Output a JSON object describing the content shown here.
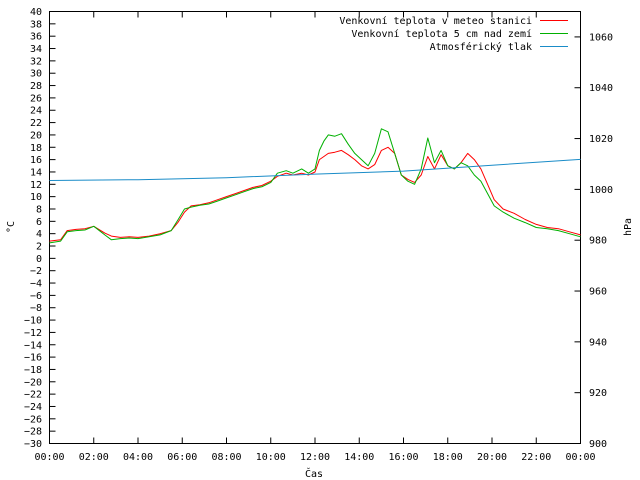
{
  "chart_data": {
    "type": "line",
    "title": "",
    "xlabel": "Čas",
    "ylabel": "°C",
    "y2label": "hPa",
    "xlim": [
      0,
      24
    ],
    "ylim": [
      -30,
      40
    ],
    "y2lim": [
      900,
      1070
    ],
    "grid": false,
    "legend_position": "top-right",
    "x_tick_labels": [
      "00:00",
      "02:00",
      "04:00",
      "06:00",
      "08:00",
      "10:00",
      "12:00",
      "14:00",
      "16:00",
      "18:00",
      "20:00",
      "22:00",
      "00:00"
    ],
    "y_tick_labels": [
      "40",
      "38",
      "36",
      "34",
      "32",
      "30",
      "28",
      "26",
      "24",
      "22",
      "20",
      "18",
      "16",
      "14",
      "12",
      "10",
      "8",
      "6",
      "4",
      "2",
      "0",
      "−2",
      "−4",
      "−6",
      "−8",
      "−10",
      "−12",
      "−14",
      "−16",
      "−18",
      "−20",
      "−22",
      "−24",
      "−26",
      "−28",
      "−30"
    ],
    "y2_tick_labels": [
      "1060",
      "1040",
      "1020",
      "1000",
      "980",
      "960",
      "940",
      "920",
      "900"
    ],
    "series": [
      {
        "name": "Venkovní teplota v meteo stanici",
        "color": "#ff0000",
        "axis": "y",
        "x": [
          0,
          0.5,
          0.8,
          1.2,
          1.6,
          2,
          2.5,
          2.8,
          3.2,
          3.6,
          4,
          4.5,
          5,
          5.5,
          5.8,
          6.1,
          6.4,
          6.8,
          7.2,
          7.6,
          8,
          8.4,
          8.8,
          9.2,
          9.6,
          10,
          10.3,
          10.7,
          11,
          11.4,
          11.7,
          12,
          12.2,
          12.4,
          12.6,
          12.9,
          13.2,
          13.5,
          13.8,
          14.1,
          14.4,
          14.7,
          15,
          15.3,
          15.6,
          15.9,
          16.2,
          16.5,
          16.8,
          17.1,
          17.4,
          17.7,
          18,
          18.3,
          18.6,
          18.9,
          19.2,
          19.5,
          19.8,
          20.1,
          20.5,
          21,
          21.5,
          22,
          22.5,
          23,
          23.5,
          24
        ],
        "y": [
          2.8,
          3,
          4.5,
          4.7,
          4.8,
          5.2,
          4.1,
          3.6,
          3.4,
          3.5,
          3.4,
          3.6,
          4,
          4.5,
          5.8,
          7.5,
          8.5,
          8.7,
          9,
          9.5,
          10,
          10.5,
          11,
          11.5,
          11.8,
          12.5,
          13.3,
          13.8,
          13.5,
          13.8,
          13.5,
          14,
          16,
          16.5,
          17,
          17.2,
          17.5,
          16.8,
          16,
          15,
          14.5,
          15.2,
          17.5,
          18,
          17,
          13.5,
          12.8,
          12.3,
          13.5,
          16.5,
          14.5,
          16.8,
          15,
          14.5,
          15.5,
          17,
          16,
          14.5,
          12,
          9.5,
          8,
          7.3,
          6.3,
          5.5,
          5,
          4.8,
          4.3,
          3.8
        ]
      },
      {
        "name": "Venkovní teplota 5 cm nad zemí",
        "color": "#00b000",
        "axis": "y",
        "x": [
          0,
          0.5,
          0.8,
          1.2,
          1.6,
          2,
          2.5,
          2.8,
          3.2,
          3.6,
          4,
          4.5,
          5,
          5.5,
          5.8,
          6.1,
          6.4,
          6.8,
          7.2,
          7.6,
          8,
          8.4,
          8.8,
          9.2,
          9.6,
          10,
          10.3,
          10.7,
          11,
          11.4,
          11.7,
          12,
          12.2,
          12.4,
          12.6,
          12.9,
          13.2,
          13.5,
          13.8,
          14.1,
          14.4,
          14.7,
          15,
          15.3,
          15.6,
          15.9,
          16.2,
          16.5,
          16.8,
          17.1,
          17.4,
          17.7,
          18,
          18.3,
          18.6,
          18.9,
          19.2,
          19.5,
          19.8,
          20.1,
          20.5,
          21,
          21.5,
          22,
          22.5,
          23,
          23.5,
          24
        ],
        "y": [
          2.5,
          2.8,
          4.3,
          4.5,
          4.6,
          5.2,
          3.8,
          3,
          3.2,
          3.3,
          3.2,
          3.5,
          3.8,
          4.5,
          6.2,
          8,
          8.3,
          8.6,
          8.8,
          9.3,
          9.8,
          10.3,
          10.8,
          11.3,
          11.6,
          12.3,
          13.8,
          14.2,
          13.8,
          14.5,
          13.8,
          14.5,
          17.5,
          19,
          20,
          19.8,
          20.2,
          18.5,
          17,
          16,
          15,
          17,
          21,
          20.5,
          17,
          13.5,
          12.5,
          12,
          14.5,
          19.5,
          15.5,
          17.5,
          15,
          14.5,
          15.5,
          15,
          13.5,
          12.5,
          10.5,
          8.5,
          7.5,
          6.5,
          5.8,
          5,
          4.8,
          4.5,
          4,
          3.5
        ]
      },
      {
        "name": "Atmosférický tlak",
        "color": "#1a8cc8",
        "axis": "y2",
        "x": [
          0,
          4,
          8,
          12,
          16,
          20,
          24
        ],
        "y": [
          1003.5,
          1003.8,
          1004.6,
          1006,
          1007.2,
          1009.5,
          1011.8
        ]
      }
    ]
  }
}
